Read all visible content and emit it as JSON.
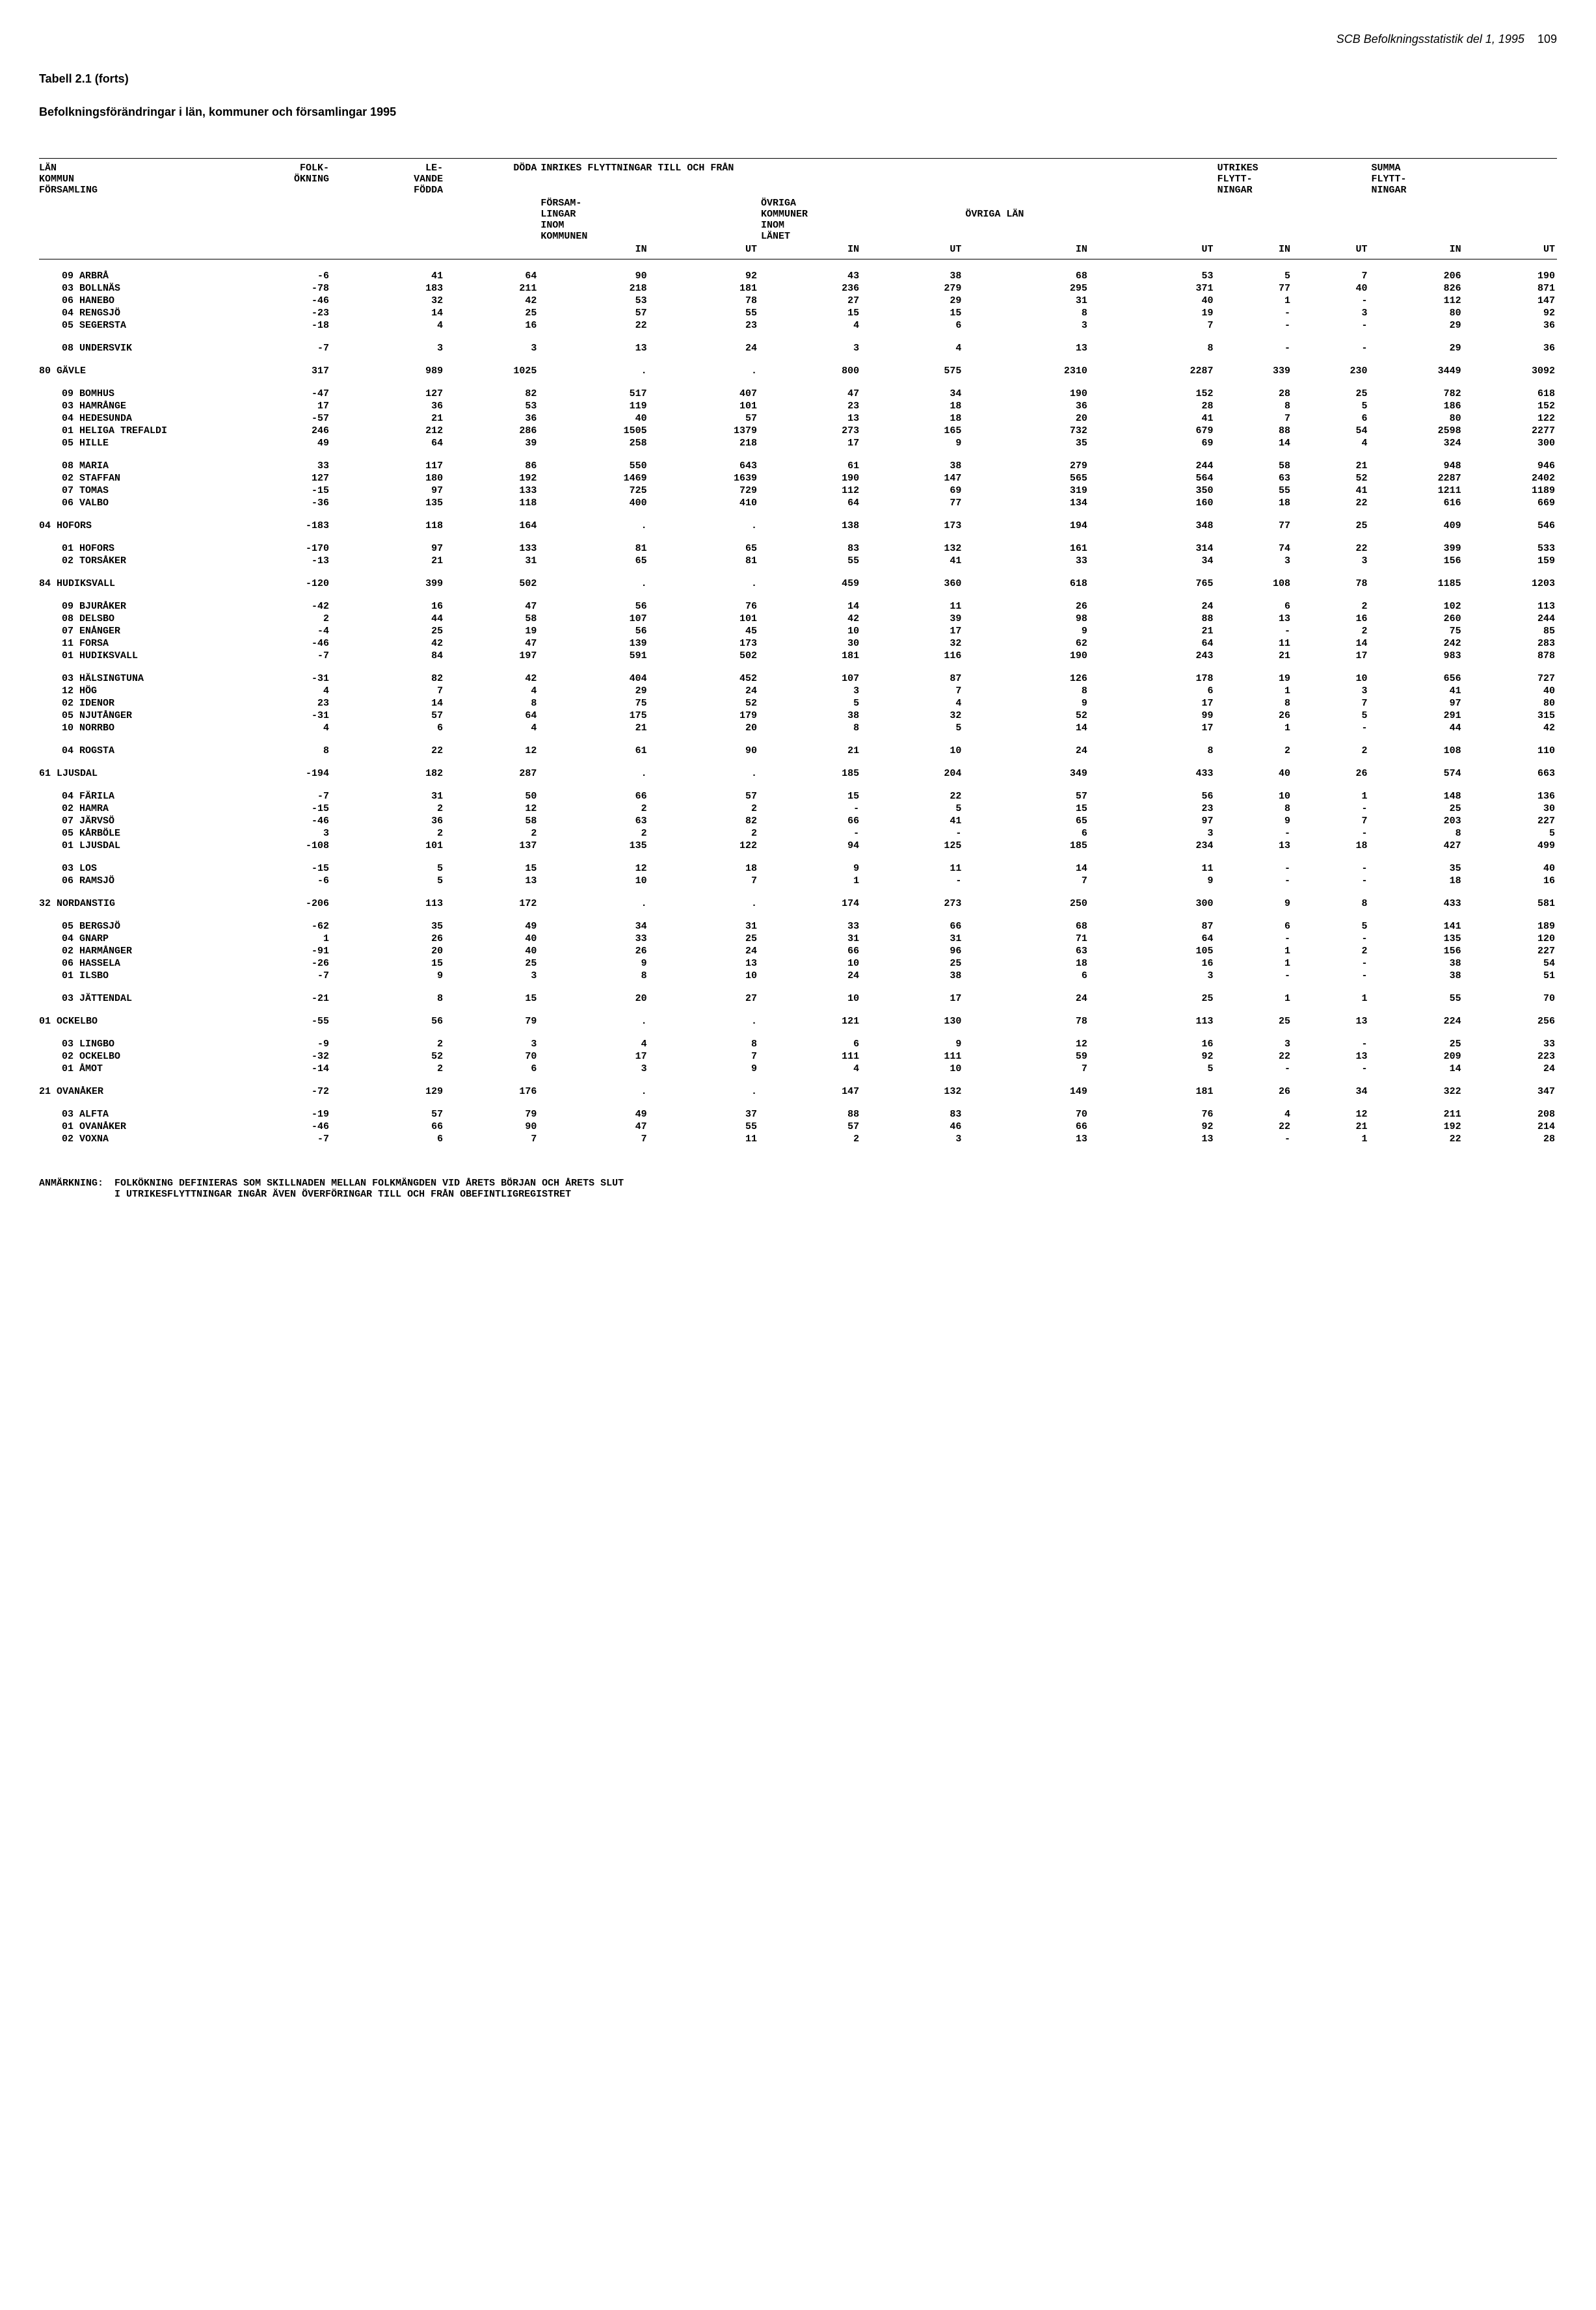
{
  "header": {
    "source": "SCB Befolkningsstatistik del 1, 1995",
    "pagenum": "109"
  },
  "titles": {
    "title": "Tabell 2.1 (forts)",
    "subtitle": "Befolkningsförändringar i län, kommuner och församlingar 1995"
  },
  "columnHeaders": {
    "col0_l1": "LÄN",
    "col0_l2": "KOMMUN",
    "col0_l3": "FÖRSAMLING",
    "col1_l1": "FOLK-",
    "col1_l2": "ÖKNING",
    "col2_l1": "LE-",
    "col2_l2": "VANDE",
    "col2_l3": "FÖDDA",
    "col3_l1": "DÖDA",
    "grp_inrikes": "INRIKES FLYTTNINGAR TILL OCH FRÅN",
    "col4_l1": "FÖRSAM-",
    "col4_l2": "LINGAR",
    "col4_l3": "INOM",
    "col4_l4": "KOMMUNEN",
    "col5_l1": "ÖVRIGA",
    "col5_l2": "KOMMUNER",
    "col5_l3": "INOM",
    "col5_l4": "LÄNET",
    "col6_l1": "ÖVRIGA LÄN",
    "grp_utrikes_l1": "UTRIKES",
    "grp_utrikes_l2": "FLYTT-",
    "grp_utrikes_l3": "NINGAR",
    "grp_summa_l1": "SUMMA",
    "grp_summa_l2": "FLYTT-",
    "grp_summa_l3": "NINGAR",
    "sub_in": "IN",
    "sub_ut": "UT"
  },
  "rows": [
    {
      "l": "09 ARBRÅ",
      "i": 1,
      "v": [
        "-6",
        "41",
        "64",
        "90",
        "92",
        "43",
        "38",
        "68",
        "53",
        "5",
        "7",
        "206",
        "190"
      ]
    },
    {
      "l": "03 BOLLNÄS",
      "i": 1,
      "v": [
        "-78",
        "183",
        "211",
        "218",
        "181",
        "236",
        "279",
        "295",
        "371",
        "77",
        "40",
        "826",
        "871"
      ]
    },
    {
      "l": "06 HANEBO",
      "i": 1,
      "v": [
        "-46",
        "32",
        "42",
        "53",
        "78",
        "27",
        "29",
        "31",
        "40",
        "1",
        "-",
        "112",
        "147"
      ]
    },
    {
      "l": "04 RENGSJÖ",
      "i": 1,
      "v": [
        "-23",
        "14",
        "25",
        "57",
        "55",
        "15",
        "15",
        "8",
        "19",
        "-",
        "3",
        "80",
        "92"
      ]
    },
    {
      "l": "05 SEGERSTA",
      "i": 1,
      "v": [
        "-18",
        "4",
        "16",
        "22",
        "23",
        "4",
        "6",
        "3",
        "7",
        "-",
        "-",
        "29",
        "36"
      ]
    },
    {
      "sp": 1
    },
    {
      "l": "08 UNDERSVIK",
      "i": 1,
      "v": [
        "-7",
        "3",
        "3",
        "13",
        "24",
        "3",
        "4",
        "13",
        "8",
        "-",
        "-",
        "29",
        "36"
      ]
    },
    {
      "sp": 1
    },
    {
      "l": "80 GÄVLE",
      "i": 0,
      "v": [
        "317",
        "989",
        "1025",
        ".",
        ".",
        "800",
        "575",
        "2310",
        "2287",
        "339",
        "230",
        "3449",
        "3092"
      ]
    },
    {
      "sp": 1
    },
    {
      "l": "09 BOMHUS",
      "i": 1,
      "v": [
        "-47",
        "127",
        "82",
        "517",
        "407",
        "47",
        "34",
        "190",
        "152",
        "28",
        "25",
        "782",
        "618"
      ]
    },
    {
      "l": "03 HAMRÅNGE",
      "i": 1,
      "v": [
        "17",
        "36",
        "53",
        "119",
        "101",
        "23",
        "18",
        "36",
        "28",
        "8",
        "5",
        "186",
        "152"
      ]
    },
    {
      "l": "04 HEDESUNDA",
      "i": 1,
      "v": [
        "-57",
        "21",
        "36",
        "40",
        "57",
        "13",
        "18",
        "20",
        "41",
        "7",
        "6",
        "80",
        "122"
      ]
    },
    {
      "l": "01 HELIGA TREFALDI",
      "i": 1,
      "v": [
        "246",
        "212",
        "286",
        "1505",
        "1379",
        "273",
        "165",
        "732",
        "679",
        "88",
        "54",
        "2598",
        "2277"
      ]
    },
    {
      "l": "05 HILLE",
      "i": 1,
      "v": [
        "49",
        "64",
        "39",
        "258",
        "218",
        "17",
        "9",
        "35",
        "69",
        "14",
        "4",
        "324",
        "300"
      ]
    },
    {
      "sp": 1
    },
    {
      "l": "08 MARIA",
      "i": 1,
      "v": [
        "33",
        "117",
        "86",
        "550",
        "643",
        "61",
        "38",
        "279",
        "244",
        "58",
        "21",
        "948",
        "946"
      ]
    },
    {
      "l": "02 STAFFAN",
      "i": 1,
      "v": [
        "127",
        "180",
        "192",
        "1469",
        "1639",
        "190",
        "147",
        "565",
        "564",
        "63",
        "52",
        "2287",
        "2402"
      ]
    },
    {
      "l": "07 TOMAS",
      "i": 1,
      "v": [
        "-15",
        "97",
        "133",
        "725",
        "729",
        "112",
        "69",
        "319",
        "350",
        "55",
        "41",
        "1211",
        "1189"
      ]
    },
    {
      "l": "06 VALBO",
      "i": 1,
      "v": [
        "-36",
        "135",
        "118",
        "400",
        "410",
        "64",
        "77",
        "134",
        "160",
        "18",
        "22",
        "616",
        "669"
      ]
    },
    {
      "sp": 1
    },
    {
      "l": "04 HOFORS",
      "i": 0,
      "v": [
        "-183",
        "118",
        "164",
        ".",
        ".",
        "138",
        "173",
        "194",
        "348",
        "77",
        "25",
        "409",
        "546"
      ]
    },
    {
      "sp": 1
    },
    {
      "l": "01 HOFORS",
      "i": 1,
      "v": [
        "-170",
        "97",
        "133",
        "81",
        "65",
        "83",
        "132",
        "161",
        "314",
        "74",
        "22",
        "399",
        "533"
      ]
    },
    {
      "l": "02 TORSÅKER",
      "i": 1,
      "v": [
        "-13",
        "21",
        "31",
        "65",
        "81",
        "55",
        "41",
        "33",
        "34",
        "3",
        "3",
        "156",
        "159"
      ]
    },
    {
      "sp": 1
    },
    {
      "l": "84 HUDIKSVALL",
      "i": 0,
      "v": [
        "-120",
        "399",
        "502",
        ".",
        ".",
        "459",
        "360",
        "618",
        "765",
        "108",
        "78",
        "1185",
        "1203"
      ]
    },
    {
      "sp": 1
    },
    {
      "l": "09 BJURÅKER",
      "i": 1,
      "v": [
        "-42",
        "16",
        "47",
        "56",
        "76",
        "14",
        "11",
        "26",
        "24",
        "6",
        "2",
        "102",
        "113"
      ]
    },
    {
      "l": "08 DELSBO",
      "i": 1,
      "v": [
        "2",
        "44",
        "58",
        "107",
        "101",
        "42",
        "39",
        "98",
        "88",
        "13",
        "16",
        "260",
        "244"
      ]
    },
    {
      "l": "07 ENÅNGER",
      "i": 1,
      "v": [
        "-4",
        "25",
        "19",
        "56",
        "45",
        "10",
        "17",
        "9",
        "21",
        "-",
        "2",
        "75",
        "85"
      ]
    },
    {
      "l": "11 FORSA",
      "i": 1,
      "v": [
        "-46",
        "42",
        "47",
        "139",
        "173",
        "30",
        "32",
        "62",
        "64",
        "11",
        "14",
        "242",
        "283"
      ]
    },
    {
      "l": "01 HUDIKSVALL",
      "i": 1,
      "v": [
        "-7",
        "84",
        "197",
        "591",
        "502",
        "181",
        "116",
        "190",
        "243",
        "21",
        "17",
        "983",
        "878"
      ]
    },
    {
      "sp": 1
    },
    {
      "l": "03 HÄLSINGTUNA",
      "i": 1,
      "v": [
        "-31",
        "82",
        "42",
        "404",
        "452",
        "107",
        "87",
        "126",
        "178",
        "19",
        "10",
        "656",
        "727"
      ]
    },
    {
      "l": "12 HÖG",
      "i": 1,
      "v": [
        "4",
        "7",
        "4",
        "29",
        "24",
        "3",
        "7",
        "8",
        "6",
        "1",
        "3",
        "41",
        "40"
      ]
    },
    {
      "l": "02 IDENOR",
      "i": 1,
      "v": [
        "23",
        "14",
        "8",
        "75",
        "52",
        "5",
        "4",
        "9",
        "17",
        "8",
        "7",
        "97",
        "80"
      ]
    },
    {
      "l": "05 NJUTÅNGER",
      "i": 1,
      "v": [
        "-31",
        "57",
        "64",
        "175",
        "179",
        "38",
        "32",
        "52",
        "99",
        "26",
        "5",
        "291",
        "315"
      ]
    },
    {
      "l": "10 NORRBO",
      "i": 1,
      "v": [
        "4",
        "6",
        "4",
        "21",
        "20",
        "8",
        "5",
        "14",
        "17",
        "1",
        "-",
        "44",
        "42"
      ]
    },
    {
      "sp": 1
    },
    {
      "l": "04 ROGSTA",
      "i": 1,
      "v": [
        "8",
        "22",
        "12",
        "61",
        "90",
        "21",
        "10",
        "24",
        "8",
        "2",
        "2",
        "108",
        "110"
      ]
    },
    {
      "sp": 1
    },
    {
      "l": "61 LJUSDAL",
      "i": 0,
      "v": [
        "-194",
        "182",
        "287",
        ".",
        ".",
        "185",
        "204",
        "349",
        "433",
        "40",
        "26",
        "574",
        "663"
      ]
    },
    {
      "sp": 1
    },
    {
      "l": "04 FÄRILA",
      "i": 1,
      "v": [
        "-7",
        "31",
        "50",
        "66",
        "57",
        "15",
        "22",
        "57",
        "56",
        "10",
        "1",
        "148",
        "136"
      ]
    },
    {
      "l": "02 HAMRA",
      "i": 1,
      "v": [
        "-15",
        "2",
        "12",
        "2",
        "2",
        "-",
        "5",
        "15",
        "23",
        "8",
        "-",
        "25",
        "30"
      ]
    },
    {
      "l": "07 JÄRVSÖ",
      "i": 1,
      "v": [
        "-46",
        "36",
        "58",
        "63",
        "82",
        "66",
        "41",
        "65",
        "97",
        "9",
        "7",
        "203",
        "227"
      ]
    },
    {
      "l": "05 KÅRBÖLE",
      "i": 1,
      "v": [
        "3",
        "2",
        "2",
        "2",
        "2",
        "-",
        "-",
        "6",
        "3",
        "-",
        "-",
        "8",
        "5"
      ]
    },
    {
      "l": "01 LJUSDAL",
      "i": 1,
      "v": [
        "-108",
        "101",
        "137",
        "135",
        "122",
        "94",
        "125",
        "185",
        "234",
        "13",
        "18",
        "427",
        "499"
      ]
    },
    {
      "sp": 1
    },
    {
      "l": "03 LOS",
      "i": 1,
      "v": [
        "-15",
        "5",
        "15",
        "12",
        "18",
        "9",
        "11",
        "14",
        "11",
        "-",
        "-",
        "35",
        "40"
      ]
    },
    {
      "l": "06 RAMSJÖ",
      "i": 1,
      "v": [
        "-6",
        "5",
        "13",
        "10",
        "7",
        "1",
        "-",
        "7",
        "9",
        "-",
        "-",
        "18",
        "16"
      ]
    },
    {
      "sp": 1
    },
    {
      "l": "32 NORDANSTIG",
      "i": 0,
      "v": [
        "-206",
        "113",
        "172",
        ".",
        ".",
        "174",
        "273",
        "250",
        "300",
        "9",
        "8",
        "433",
        "581"
      ]
    },
    {
      "sp": 1
    },
    {
      "l": "05 BERGSJÖ",
      "i": 1,
      "v": [
        "-62",
        "35",
        "49",
        "34",
        "31",
        "33",
        "66",
        "68",
        "87",
        "6",
        "5",
        "141",
        "189"
      ]
    },
    {
      "l": "04 GNARP",
      "i": 1,
      "v": [
        "1",
        "26",
        "40",
        "33",
        "25",
        "31",
        "31",
        "71",
        "64",
        "-",
        "-",
        "135",
        "120"
      ]
    },
    {
      "l": "02 HARMÅNGER",
      "i": 1,
      "v": [
        "-91",
        "20",
        "40",
        "26",
        "24",
        "66",
        "96",
        "63",
        "105",
        "1",
        "2",
        "156",
        "227"
      ]
    },
    {
      "l": "06 HASSELA",
      "i": 1,
      "v": [
        "-26",
        "15",
        "25",
        "9",
        "13",
        "10",
        "25",
        "18",
        "16",
        "1",
        "-",
        "38",
        "54"
      ]
    },
    {
      "l": "01 ILSBO",
      "i": 1,
      "v": [
        "-7",
        "9",
        "3",
        "8",
        "10",
        "24",
        "38",
        "6",
        "3",
        "-",
        "-",
        "38",
        "51"
      ]
    },
    {
      "sp": 1
    },
    {
      "l": "03 JÄTTENDAL",
      "i": 1,
      "v": [
        "-21",
        "8",
        "15",
        "20",
        "27",
        "10",
        "17",
        "24",
        "25",
        "1",
        "1",
        "55",
        "70"
      ]
    },
    {
      "sp": 1
    },
    {
      "l": "01 OCKELBO",
      "i": 0,
      "v": [
        "-55",
        "56",
        "79",
        ".",
        ".",
        "121",
        "130",
        "78",
        "113",
        "25",
        "13",
        "224",
        "256"
      ]
    },
    {
      "sp": 1
    },
    {
      "l": "03 LINGBO",
      "i": 1,
      "v": [
        "-9",
        "2",
        "3",
        "4",
        "8",
        "6",
        "9",
        "12",
        "16",
        "3",
        "-",
        "25",
        "33"
      ]
    },
    {
      "l": "02 OCKELBO",
      "i": 1,
      "v": [
        "-32",
        "52",
        "70",
        "17",
        "7",
        "111",
        "111",
        "59",
        "92",
        "22",
        "13",
        "209",
        "223"
      ]
    },
    {
      "l": "01 ÅMOT",
      "i": 1,
      "v": [
        "-14",
        "2",
        "6",
        "3",
        "9",
        "4",
        "10",
        "7",
        "5",
        "-",
        "-",
        "14",
        "24"
      ]
    },
    {
      "sp": 1
    },
    {
      "l": "21 OVANÅKER",
      "i": 0,
      "v": [
        "-72",
        "129",
        "176",
        ".",
        ".",
        "147",
        "132",
        "149",
        "181",
        "26",
        "34",
        "322",
        "347"
      ]
    },
    {
      "sp": 1
    },
    {
      "l": "03 ALFTA",
      "i": 1,
      "v": [
        "-19",
        "57",
        "79",
        "49",
        "37",
        "88",
        "83",
        "70",
        "76",
        "4",
        "12",
        "211",
        "208"
      ]
    },
    {
      "l": "01 OVANÅKER",
      "i": 1,
      "v": [
        "-46",
        "66",
        "90",
        "47",
        "55",
        "57",
        "46",
        "66",
        "92",
        "22",
        "21",
        "192",
        "214"
      ]
    },
    {
      "l": "02 VOXNA",
      "i": 1,
      "v": [
        "-7",
        "6",
        "7",
        "7",
        "11",
        "2",
        "3",
        "13",
        "13",
        "-",
        "1",
        "22",
        "28"
      ]
    }
  ],
  "footnote": {
    "label": "ANMÄRKNING:",
    "line1": "FOLKÖKNING DEFINIERAS SOM SKILLNADEN MELLAN FOLKMÄNGDEN VID ÅRETS BÖRJAN OCH ÅRETS SLUT",
    "line2": "I UTRIKESFLYTTNINGAR INGÅR ÄVEN ÖVERFÖRINGAR TILL OCH FRÅN OBEFINTLIGREGISTRET"
  }
}
